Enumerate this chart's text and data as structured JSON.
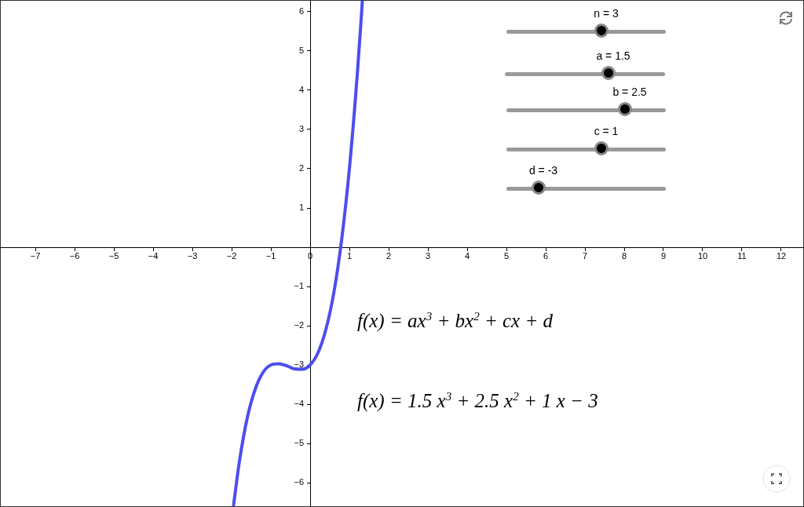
{
  "chart_data": {
    "type": "line",
    "grid": false,
    "legend": false,
    "marker": "none",
    "line_style": "solid",
    "xlim": [
      -7.9,
      12.58
    ],
    "ylim": [
      -6.62,
      6.3
    ],
    "xticks": [
      {
        "value": -7,
        "label": "−7"
      },
      {
        "value": -6,
        "label": "−6"
      },
      {
        "value": -5,
        "label": "−5"
      },
      {
        "value": -4,
        "label": "−4"
      },
      {
        "value": -3,
        "label": "−3"
      },
      {
        "value": -2,
        "label": "−2"
      },
      {
        "value": -1,
        "label": "−1"
      },
      0,
      1,
      2,
      3,
      4,
      5,
      6,
      7,
      8,
      9,
      10,
      11,
      12
    ],
    "yticks": [
      {
        "value": -6,
        "label": "−6"
      },
      {
        "value": -5,
        "label": "−5"
      },
      {
        "value": -4,
        "label": "−4"
      },
      {
        "value": -3,
        "label": "−3"
      },
      {
        "value": -2,
        "label": "−2"
      },
      {
        "value": -1,
        "label": "−1"
      },
      1,
      2,
      3,
      4,
      5,
      6
    ],
    "series": [
      {
        "color": "#4d4df0",
        "x": [
          -1.95,
          -1.8,
          -1.6,
          -1.4,
          -1.2,
          -1.0,
          -0.8,
          -0.6,
          -0.4,
          -0.2,
          0,
          0.2,
          0.4,
          0.6,
          0.8,
          1.0,
          1.2,
          1.3,
          1.33
        ],
        "values": [
          -6.57,
          -5.45,
          -4.34,
          -3.62,
          -3.19,
          -3.0,
          -2.97,
          -3.02,
          -3.1,
          -3.11,
          -3.0,
          -2.69,
          -2.1,
          -1.18,
          0.17,
          2.0,
          4.39,
          5.82,
          6.28
        ]
      }
    ],
    "annotations": [
      "n = 3",
      "a = 1.5",
      "b = 2.5",
      "c = 1",
      "d = -3",
      "f(x) = ax$^{3}$ + bx$^{2}$ + cx + d",
      "f(x) = 1.5 x$^{3}$ + 2.5 x$^{2}$ + 1 x − 3"
    ]
  }
}
